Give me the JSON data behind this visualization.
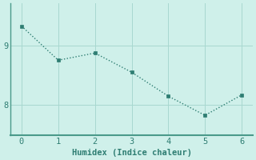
{
  "x": [
    0,
    1,
    2,
    3,
    4,
    5,
    6
  ],
  "y": [
    9.32,
    8.75,
    8.87,
    8.55,
    8.15,
    7.83,
    8.17
  ],
  "line_color": "#2e7d72",
  "marker": "s",
  "marker_size": 2.5,
  "linewidth": 1.0,
  "linestyle": "dotted",
  "xlabel": "Humidex (Indice chaleur)",
  "xlabel_fontsize": 7.5,
  "ylim": [
    7.5,
    9.7
  ],
  "xlim": [
    -0.3,
    6.3
  ],
  "yticks": [
    8,
    9
  ],
  "xticks": [
    0,
    1,
    2,
    3,
    4,
    5,
    6
  ],
  "background_color": "#cff0ea",
  "grid_color": "#a8d8d0",
  "spine_color": "#4a9a8a",
  "tick_color": "#2e7d72",
  "tick_fontsize": 7.5,
  "font_family": "monospace"
}
